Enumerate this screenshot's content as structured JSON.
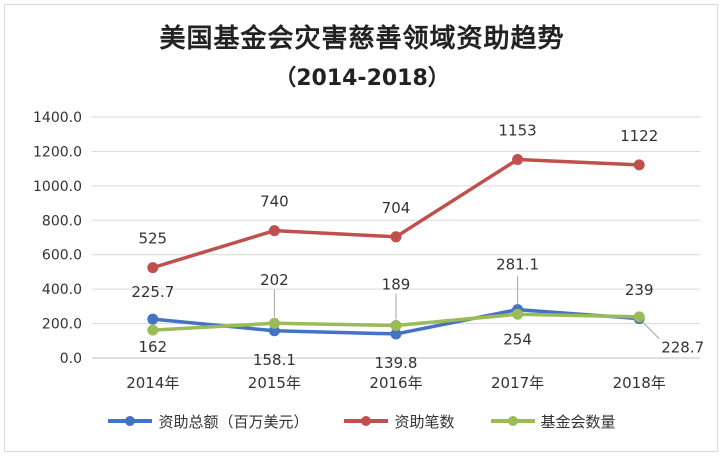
{
  "chart_data": {
    "type": "line",
    "title": "美国基金会灾害慈善领域资助趋势",
    "subtitle": "（2014-2018）",
    "categories": [
      "2014年",
      "2015年",
      "2016年",
      "2017年",
      "2018年"
    ],
    "ylim": [
      0,
      1400
    ],
    "yticks": [
      "0.0",
      "200.0",
      "400.0",
      "600.0",
      "800.0",
      "1000.0",
      "1200.0",
      "1400.0"
    ],
    "grid": true,
    "legend_position": "bottom",
    "series": [
      {
        "name": "资助总额（百万美元）",
        "color": "#4472c4",
        "values": [
          225.7,
          158.1,
          139.8,
          281.1,
          228.7
        ],
        "labels": [
          "225.7",
          "158.1",
          "139.8",
          "281.1",
          "228.7"
        ]
      },
      {
        "name": "资助笔数",
        "color": "#c0504d",
        "values": [
          525,
          740,
          704,
          1153,
          1122
        ],
        "labels": [
          "525",
          "740",
          "704",
          "1153",
          "1122"
        ]
      },
      {
        "name": "基金会数量",
        "color": "#9bbb59",
        "values": [
          162,
          202,
          189,
          254,
          239
        ],
        "labels": [
          "162",
          "202",
          "189",
          "254",
          "239"
        ]
      }
    ]
  }
}
